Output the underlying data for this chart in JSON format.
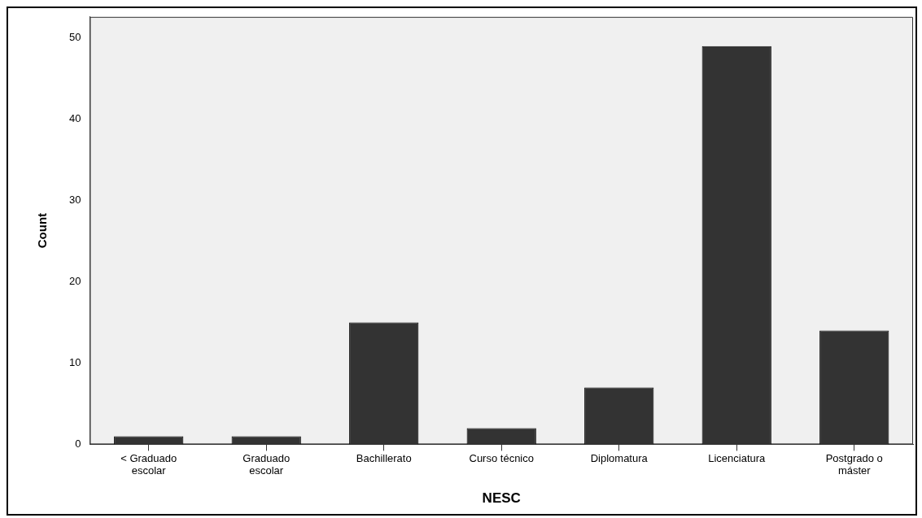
{
  "chart_data": {
    "type": "bar",
    "xlabel": "NESC",
    "ylabel": "Count",
    "categories": [
      "< Graduado escolar",
      "Graduado escolar",
      "Bachillerato",
      "Curso técnico",
      "Diplomatura",
      "Licenciatura",
      "Postgrado o máster"
    ],
    "values": [
      1,
      1,
      15,
      2,
      7,
      49,
      14
    ],
    "color": "#333333",
    "ylim": [
      0,
      52.6
    ],
    "yticks": [
      0,
      10,
      20,
      30,
      40,
      50
    ],
    "grid": false,
    "legend": false
  }
}
